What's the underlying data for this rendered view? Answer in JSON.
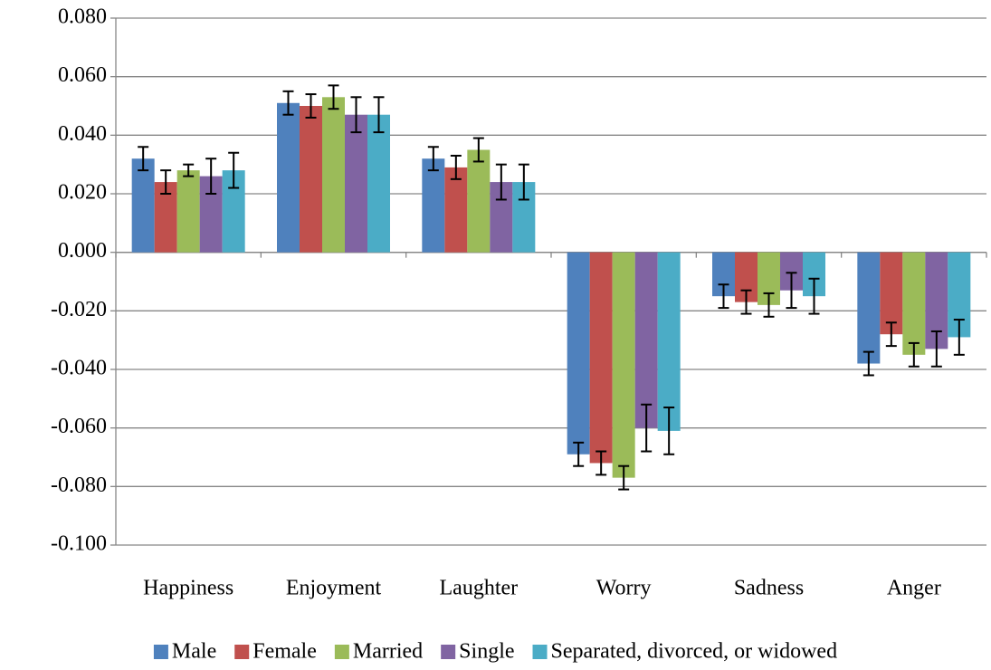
{
  "chart_data": {
    "type": "bar",
    "categories": [
      "Happiness",
      "Enjoyment",
      "Laughter",
      "Worry",
      "Sadness",
      "Anger"
    ],
    "series": [
      {
        "name": "Male",
        "color": "#4f81bd",
        "values": [
          0.032,
          0.051,
          0.032,
          -0.069,
          -0.015,
          -0.038
        ],
        "errors": [
          0.004,
          0.004,
          0.004,
          0.004,
          0.004,
          0.004
        ]
      },
      {
        "name": "Female",
        "color": "#c0504d",
        "values": [
          0.024,
          0.05,
          0.029,
          -0.072,
          -0.017,
          -0.028
        ],
        "errors": [
          0.004,
          0.004,
          0.004,
          0.004,
          0.004,
          0.004
        ]
      },
      {
        "name": "Married",
        "color": "#9bbb59",
        "values": [
          0.028,
          0.053,
          0.035,
          -0.077,
          -0.018,
          -0.035
        ],
        "errors": [
          0.002,
          0.004,
          0.004,
          0.004,
          0.004,
          0.004
        ]
      },
      {
        "name": "Single",
        "color": "#8064a2",
        "values": [
          0.026,
          0.047,
          0.024,
          -0.06,
          -0.013,
          -0.033
        ],
        "errors": [
          0.006,
          0.006,
          0.006,
          0.008,
          0.006,
          0.006
        ]
      },
      {
        "name": "Separated, divorced, or widowed",
        "color": "#4bacc6",
        "values": [
          0.028,
          0.047,
          0.024,
          -0.061,
          -0.015,
          -0.029
        ],
        "errors": [
          0.006,
          0.006,
          0.006,
          0.008,
          0.006,
          0.006
        ]
      }
    ],
    "ylim": [
      -0.1,
      0.08
    ],
    "yticks": [
      {
        "value": -0.1,
        "label": "-0.100"
      },
      {
        "value": -0.08,
        "label": "-0.080"
      },
      {
        "value": -0.06,
        "label": "-0.060"
      },
      {
        "value": -0.04,
        "label": "-0.040"
      },
      {
        "value": -0.02,
        "label": "-0.020"
      },
      {
        "value": 0,
        "label": "0.000"
      },
      {
        "value": 0.02,
        "label": "0.020"
      },
      {
        "value": 0.04,
        "label": "0.040"
      },
      {
        "value": 0.06,
        "label": "0.060"
      },
      {
        "value": 0.08,
        "label": "0.080"
      }
    ],
    "grid": true,
    "legend": "bottom"
  }
}
